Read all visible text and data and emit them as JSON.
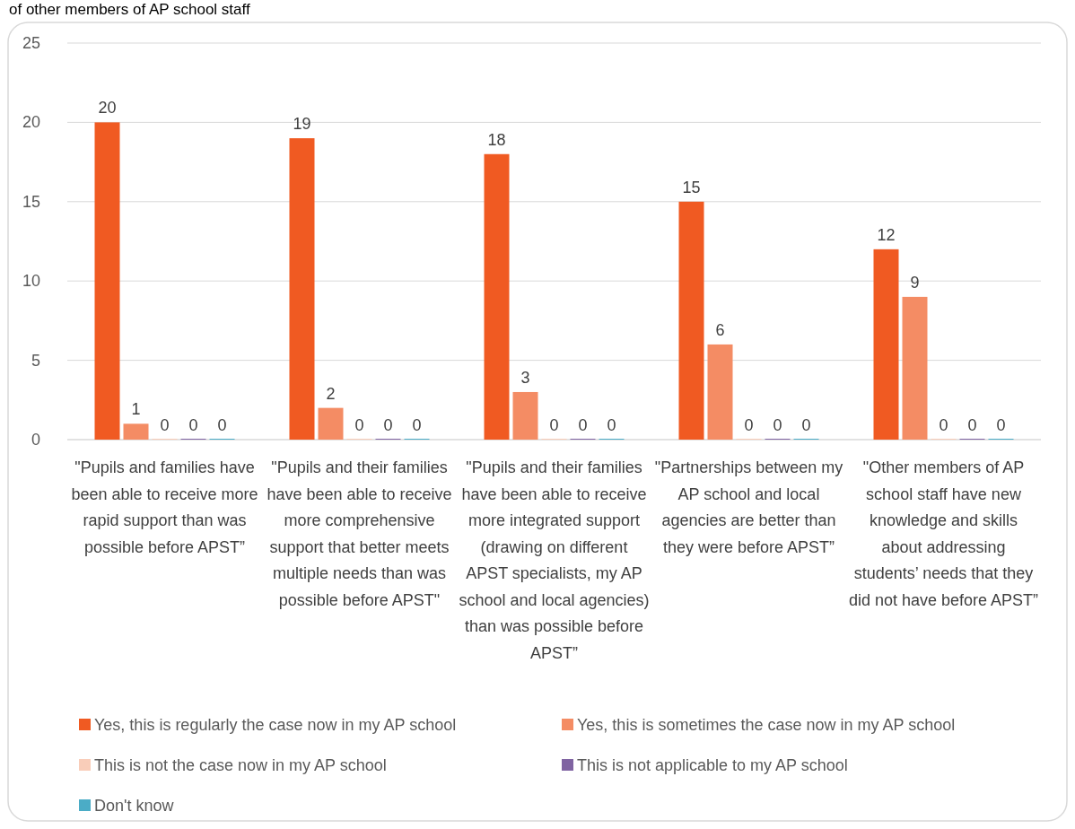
{
  "chart_data": {
    "type": "bar",
    "annotations": [
      "of other members of AP school staff"
    ],
    "categories": [
      "\"Pupils and families have been able to receive more rapid support than was possible before APST”",
      "\"Pupils and their families have been able to receive more comprehensive support that better meets multiple needs than was possible before APST\"",
      "\"Pupils and their families have been able to receive more integrated support (drawing on different APST specialists, my AP school and local agencies) than was possible before APST”",
      "\"Partnerships between my AP school and local agencies are better than they were before APST”",
      "\"Other members of AP school staff have new knowledge and skills about addressing students’ needs that they did not have before APST”"
    ],
    "series": [
      {
        "name": "Yes, this is  regularly the case now in my AP school",
        "color": "#f05a22",
        "values": [
          20,
          19,
          18,
          15,
          12
        ]
      },
      {
        "name": "Yes, this is sometimes the case now in my AP school",
        "color": "#f48c64",
        "values": [
          1,
          2,
          3,
          6,
          9
        ]
      },
      {
        "name": "This is not the case now in my AP school",
        "color": "#f9cdb9",
        "values": [
          0,
          0,
          0,
          0,
          0
        ]
      },
      {
        "name": "This is not applicable to my AP school",
        "color": "#8064a2",
        "values": [
          0,
          0,
          0,
          0,
          0
        ]
      },
      {
        "name": "Don't know",
        "color": "#4bacc6",
        "values": [
          0,
          0,
          0,
          0,
          0
        ]
      }
    ],
    "ylim": [
      0,
      25
    ],
    "yticks": [
      0,
      5,
      10,
      15,
      20,
      25
    ],
    "grid": "y",
    "data_labels": true,
    "legend": "bottom"
  }
}
